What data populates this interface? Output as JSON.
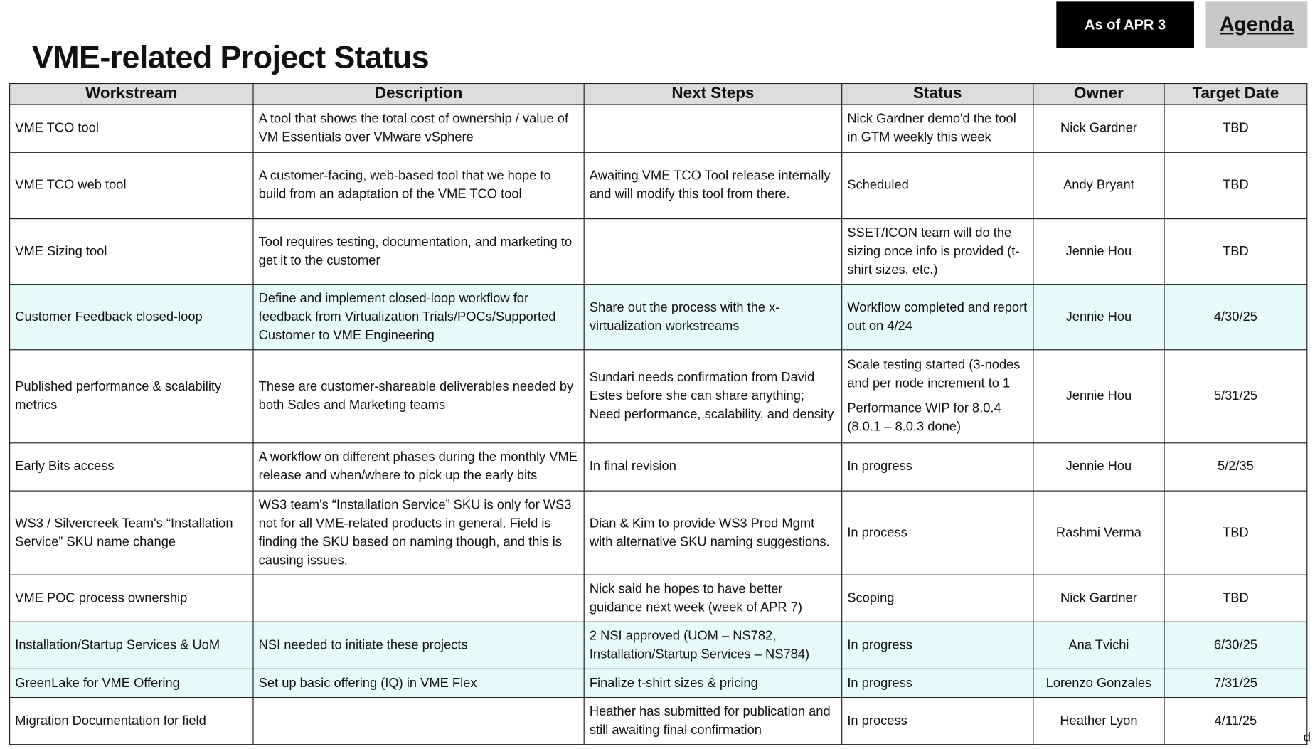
{
  "title": "VME-related Project Status",
  "as_of": "As of APR 3",
  "agenda_link": "Agenda",
  "columns": [
    "Workstream",
    "Description",
    "Next Steps",
    "Status",
    "Owner",
    "Target Date"
  ],
  "rows": [
    {
      "workstream": "VME TCO tool",
      "description": "A tool that shows the total cost of ownership / value of VM Essentials over VMware vSphere",
      "next_steps": "",
      "status": "Nick Gardner demo'd the tool in GTM weekly this week",
      "owner": "Nick Gardner",
      "target": "TBD",
      "highlight": false
    },
    {
      "workstream": "VME TCO web tool",
      "description": "A customer-facing, web-based tool that we hope to build from an adaptation of the VME TCO tool",
      "next_steps": "Awaiting VME TCO Tool release internally and will modify this tool from there.",
      "status": "Scheduled",
      "owner": "Andy Bryant",
      "target": "TBD",
      "highlight": false
    },
    {
      "workstream": "VME Sizing tool",
      "description": "Tool requires testing, documentation, and marketing to get it to the customer",
      "next_steps": "",
      "status": "SSET/ICON team will do the sizing once info is provided (t-shirt sizes, etc.)",
      "owner": "Jennie Hou",
      "target": "TBD",
      "highlight": false
    },
    {
      "workstream": "Customer Feedback closed-loop",
      "description": "Define and implement closed-loop workflow for feedback from Virtualization Trials/POCs/Supported Customer to VME Engineering",
      "next_steps": "Share out the process with the x-virtualization workstreams",
      "status": "Workflow completed and report out on 4/24",
      "owner": "Jennie Hou",
      "target": "4/30/25",
      "highlight": true
    },
    {
      "workstream": "Published performance & scalability metrics",
      "description": "These are customer-shareable deliverables needed by both Sales and Marketing teams",
      "next_steps": "Sundari needs confirmation from David Estes before she can share anything; Need performance, scalability, and density",
      "status": "Scale testing started (3-nodes and per node increment to 1",
      "status2": "Performance WIP for 8.0.4 (8.0.1 – 8.0.3 done)",
      "owner": "Jennie Hou",
      "target": "5/31/25",
      "highlight": false
    },
    {
      "workstream": "Early Bits access",
      "description": "A workflow on different phases during the monthly VME release and when/where to pick up the early bits",
      "next_steps": "In final revision",
      "status": "In progress",
      "owner": "Jennie Hou",
      "target": "5/2/35",
      "highlight": false
    },
    {
      "workstream": "WS3 / Silvercreek Team's “Installation Service” SKU name change",
      "description": "WS3 team's “Installation Service” SKU is only for WS3 not for all VME-related products in general. Field is finding the SKU based on naming though, and this is causing issues.",
      "next_steps": "Dian & Kim to provide WS3 Prod Mgmt with alternative SKU naming suggestions.",
      "status": "In process",
      "owner": "Rashmi Verma",
      "target": "TBD",
      "highlight": false
    },
    {
      "workstream": "VME POC process ownership",
      "description": "",
      "next_steps": "Nick said he hopes to have better guidance next week (week of APR 7)",
      "status": "Scoping",
      "owner": "Nick Gardner",
      "target": "TBD",
      "highlight": false
    },
    {
      "workstream": "Installation/Startup Services & UoM",
      "description": "NSI needed to initiate these projects",
      "next_steps": "2 NSI approved (UOM – NS782, Installation/Startup Services – NS784)",
      "status": "In progress",
      "owner": "Ana Tvichi",
      "target": "6/30/25",
      "highlight": true
    },
    {
      "workstream": "GreenLake for VME Offering",
      "description": "Set up basic offering (IQ) in VME Flex",
      "next_steps": "Finalize t-shirt sizes & pricing",
      "status": "In progress",
      "owner": "Lorenzo Gonzales",
      "target": "7/31/25",
      "highlight": true
    },
    {
      "workstream": "Migration Documentation for field",
      "description": "",
      "next_steps": "Heather has submitted for publication and still awaiting final confirmation",
      "status": "In process",
      "owner": "Heather Lyon",
      "target": "4/11/25",
      "highlight": false
    }
  ],
  "stray_char": "d",
  "colors": {
    "header_bg": "#dcdcdc",
    "highlight_row": "#e6fafa",
    "as_of_bg": "#000000",
    "agenda_bg": "#c8c8c6"
  }
}
